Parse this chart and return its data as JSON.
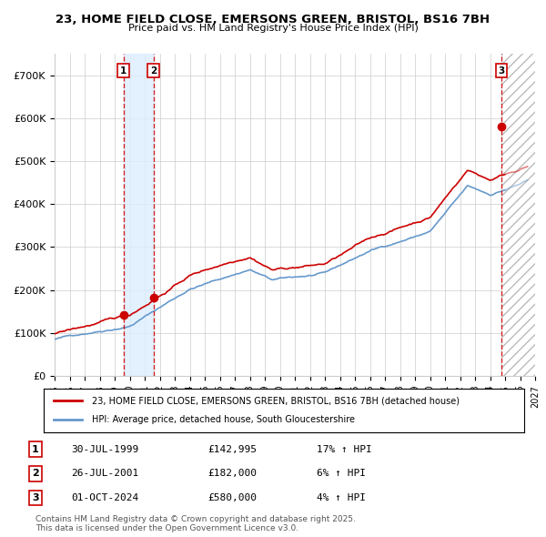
{
  "title": "23, HOME FIELD CLOSE, EMERSONS GREEN, BRISTOL, BS16 7BH",
  "subtitle": "Price paid vs. HM Land Registry's House Price Index (HPI)",
  "legend_line1": "23, HOME FIELD CLOSE, EMERSONS GREEN, BRISTOL, BS16 7BH (detached house)",
  "legend_line2": "HPI: Average price, detached house, South Gloucestershire",
  "footnote": "Contains HM Land Registry data © Crown copyright and database right 2025.\nThis data is licensed under the Open Government Licence v3.0.",
  "purchases": [
    {
      "label": "1",
      "date": "30-JUL-1999",
      "price": 142995,
      "pct": "17%",
      "dir": "↑",
      "year": 1999.58
    },
    {
      "label": "2",
      "date": "26-JUL-2001",
      "price": 182000,
      "pct": "6%",
      "dir": "↑",
      "year": 2001.58
    },
    {
      "label": "3",
      "date": "01-OCT-2024",
      "price": 580000,
      "pct": "4%",
      "dir": "↑",
      "year": 2024.75
    }
  ],
  "red_color": "#cc0000",
  "blue_color": "#6699cc",
  "shade_color": "#ddeeff",
  "grid_color": "#cccccc",
  "ylim": [
    0,
    750000
  ],
  "yticks": [
    0,
    100000,
    200000,
    300000,
    400000,
    500000,
    600000,
    700000
  ],
  "ytick_labels": [
    "£0",
    "£100K",
    "£200K",
    "£300K",
    "£400K",
    "£500K",
    "£600K",
    "£700K"
  ],
  "xstart": 1995,
  "xend": 2027,
  "background_color": "#ffffff"
}
